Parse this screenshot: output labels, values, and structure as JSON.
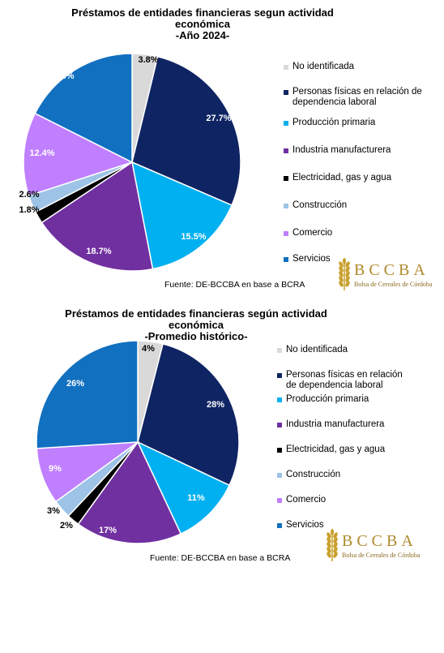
{
  "chart_data": [
    {
      "type": "pie",
      "title_lines": [
        "Préstamos de entidades financieras segun actividad",
        "económica",
        "-Año 2024-"
      ],
      "categories": [
        "No identificada",
        "Personas físicas en relación de dependencia laboral",
        "Producción primaria",
        "Industria manufacturera",
        "Electricidad, gas y agua",
        "Construcción",
        "Comercio",
        "Servicios"
      ],
      "legend_lines": [
        [
          "No identificada"
        ],
        [
          "Personas físicas en relación de",
          "dependencia laboral"
        ],
        [
          "Producción primaria"
        ],
        [
          "Industria manufacturera"
        ],
        [
          "Electricidad, gas y agua"
        ],
        [
          "Construcción"
        ],
        [
          "Comercio"
        ],
        [
          "Servicios"
        ]
      ],
      "values": [
        3.8,
        27.7,
        15.5,
        18.7,
        1.8,
        2.6,
        12.4,
        17.6
      ],
      "labels": [
        "3.8%",
        "27.7%",
        "15.5%",
        "18.7%",
        "1.8%",
        "2.6%",
        "12.4%",
        "17.6%"
      ],
      "legend_position": "right",
      "source": "Fuente: DE-BCCBA en base a BCRA"
    },
    {
      "type": "pie",
      "title_lines": [
        "Préstamos de entidades financieras según actividad",
        "económica",
        "-Promedio histórico-"
      ],
      "categories": [
        "No identificada",
        "Personas físicas en relación de dependencia laboral",
        "Producción primaria",
        "Industria manufacturera",
        "Electricidad, gas y agua",
        "Construcción",
        "Comercio",
        "Servicios"
      ],
      "legend_lines": [
        [
          "No identificada"
        ],
        [
          "Personas físicas en relación",
          "de dependencia laboral"
        ],
        [
          "Producción primaria"
        ],
        [
          "Industria manufacturera"
        ],
        [
          "Electricidad, gas y agua"
        ],
        [
          "Construcción"
        ],
        [
          "Comercio"
        ],
        [
          "Servicios"
        ]
      ],
      "values": [
        4,
        28,
        11,
        17,
        2,
        3,
        9,
        26
      ],
      "labels": [
        "4%",
        "28%",
        "11%",
        "17%",
        "2%",
        "3%",
        "9%",
        "26%"
      ],
      "legend_position": "right",
      "source": "Fuente: DE-BCCBA en base a BCRA"
    }
  ],
  "colors": [
    "#d9d9d9",
    "#0f2463",
    "#00b0f0",
    "#7030a0",
    "#000000",
    "#9dc3e6",
    "#bf7fff",
    "#1170c0"
  ],
  "logo": {
    "text": "BCCBA",
    "subtitle": "Bolsa de Cereales de Córdoba",
    "icon": "wheat-icon"
  }
}
